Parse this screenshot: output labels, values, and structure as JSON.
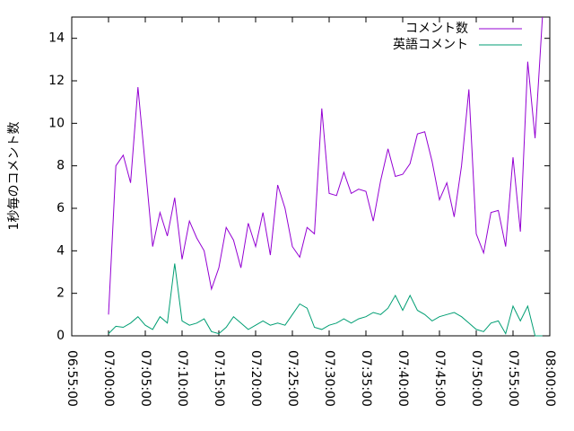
{
  "chart_data": {
    "type": "line",
    "ylabel": "1秒毎のコメント数",
    "x": [
      "07:00:00",
      "07:01:00",
      "07:02:00",
      "07:03:00",
      "07:04:00",
      "07:05:00",
      "07:06:00",
      "07:07:00",
      "07:08:00",
      "07:09:00",
      "07:10:00",
      "07:11:00",
      "07:12:00",
      "07:13:00",
      "07:14:00",
      "07:15:00",
      "07:16:00",
      "07:17:00",
      "07:18:00",
      "07:19:00",
      "07:20:00",
      "07:21:00",
      "07:22:00",
      "07:23:00",
      "07:24:00",
      "07:25:00",
      "07:26:00",
      "07:27:00",
      "07:28:00",
      "07:29:00",
      "07:30:00",
      "07:31:00",
      "07:32:00",
      "07:33:00",
      "07:34:00",
      "07:35:00",
      "07:36:00",
      "07:37:00",
      "07:38:00",
      "07:39:00",
      "07:40:00",
      "07:41:00",
      "07:42:00",
      "07:43:00",
      "07:44:00",
      "07:45:00",
      "07:46:00",
      "07:47:00",
      "07:48:00",
      "07:49:00",
      "07:50:00",
      "07:51:00",
      "07:52:00",
      "07:53:00",
      "07:54:00",
      "07:55:00",
      "07:56:00",
      "07:57:00",
      "07:58:00",
      "07:59:00"
    ],
    "series": [
      {
        "name": "コメント数",
        "color": "#9400d3",
        "values": [
          1,
          8,
          8.5,
          7.2,
          11.7,
          8,
          4.2,
          5.8,
          4.7,
          6.5,
          3.6,
          5.4,
          4.6,
          4,
          2.2,
          3.2,
          5.1,
          4.5,
          3.2,
          5.3,
          4.2,
          5.8,
          3.8,
          7.1,
          6,
          4.2,
          3.7,
          5.1,
          4.8,
          10.7,
          6.7,
          6.6,
          7.7,
          6.7,
          6.9,
          6.8,
          5.4,
          7.3,
          8.8,
          7.5,
          7.6,
          8.1,
          9.5,
          9.6,
          8.2,
          6.4,
          7.2,
          5.6,
          8,
          11.6,
          4.8,
          3.9,
          5.8,
          5.9,
          4.2,
          8.4,
          4.9,
          12.9,
          9.3,
          15
        ]
      },
      {
        "name": "英語コメント",
        "color": "#009e73",
        "values": [
          0.1,
          0.45,
          0.4,
          0.6,
          0.9,
          0.5,
          0.3,
          0.9,
          0.6,
          3.4,
          0.7,
          0.5,
          0.6,
          0.8,
          0.2,
          0.1,
          0.4,
          0.9,
          0.6,
          0.3,
          0.5,
          0.7,
          0.5,
          0.6,
          0.5,
          1.0,
          1.5,
          1.3,
          0.4,
          0.3,
          0.5,
          0.6,
          0.8,
          0.6,
          0.8,
          0.9,
          1.1,
          1.0,
          1.3,
          1.9,
          1.2,
          1.9,
          1.2,
          1.0,
          0.7,
          0.9,
          1.0,
          1.1,
          0.9,
          0.6,
          0.3,
          0.2,
          0.6,
          0.7,
          0.1,
          1.4,
          0.7,
          1.4,
          0.0,
          0.0
        ]
      }
    ],
    "xlim": [
      "06:55:00",
      "08:00:00"
    ],
    "xticks": [
      "06:55:00",
      "07:00:00",
      "07:05:00",
      "07:10:00",
      "07:15:00",
      "07:20:00",
      "07:25:00",
      "07:30:00",
      "07:35:00",
      "07:40:00",
      "07:45:00",
      "07:50:00",
      "07:55:00",
      "08:00:00"
    ],
    "ylim": [
      0,
      15
    ],
    "yticks": [
      0,
      2,
      4,
      6,
      8,
      10,
      12,
      14
    ],
    "legend": "top-right"
  }
}
